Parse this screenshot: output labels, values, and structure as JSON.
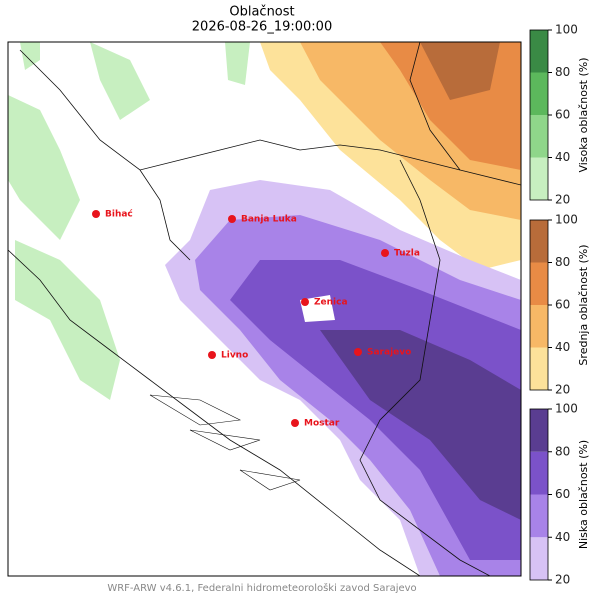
{
  "header": {
    "title": "Oblačnost",
    "datetime": "2026-08-26_19:00:00"
  },
  "cities": [
    "Bihać",
    "Banja Luka",
    "Tuzla",
    "Zenica",
    "Livno",
    "Sarajevo",
    "Mostar"
  ],
  "colorbars": [
    {
      "label": "Visoka oblačnost (%)",
      "lim": [
        20,
        100
      ],
      "ticks": [
        20,
        40,
        60,
        80,
        100
      ],
      "colors": [
        "#c7efc0",
        "#8fd68a",
        "#5cb85c",
        "#3a8a45"
      ]
    },
    {
      "label": "Srednja oblačnost (%)",
      "lim": [
        20,
        100
      ],
      "ticks": [
        20,
        40,
        60,
        80,
        100
      ],
      "colors": [
        "#fde29a",
        "#f7b866",
        "#e88b45",
        "#b86c3a"
      ]
    },
    {
      "label": "Niska oblačnost (%)",
      "lim": [
        20,
        100
      ],
      "ticks": [
        20,
        40,
        60,
        80,
        100
      ],
      "colors": [
        "#d7c2f5",
        "#a883e8",
        "#7b52c9",
        "#5a3d91"
      ]
    }
  ],
  "footer": "WRF-ARW v4.6.1, Federalni hidrometeorološki zavod Sarajevo"
}
